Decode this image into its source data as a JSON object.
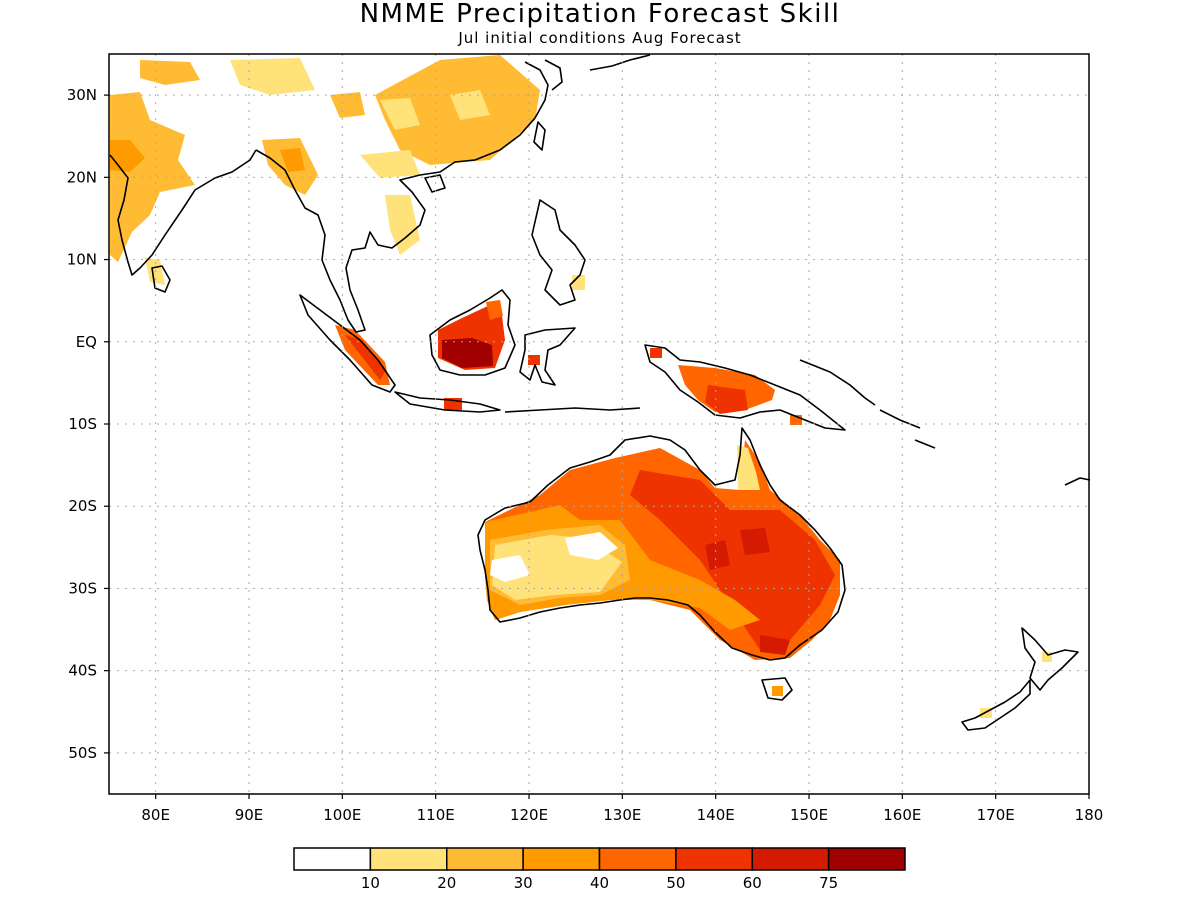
{
  "title": "NMME Precipitation Forecast Skill",
  "subtitle": "Jul initial conditions  Aug Forecast",
  "map": {
    "lon_range": [
      75,
      180
    ],
    "lat_range": [
      -55,
      35
    ],
    "lat_ticks": [
      {
        "value": 30,
        "label": "30N"
      },
      {
        "value": 20,
        "label": "20N"
      },
      {
        "value": 10,
        "label": "10N"
      },
      {
        "value": 0,
        "label": "EQ"
      },
      {
        "value": -10,
        "label": "10S"
      },
      {
        "value": -20,
        "label": "20S"
      },
      {
        "value": -30,
        "label": "30S"
      },
      {
        "value": -40,
        "label": "40S"
      },
      {
        "value": -50,
        "label": "50S"
      }
    ],
    "lon_ticks": [
      {
        "value": 80,
        "label": "80E"
      },
      {
        "value": 90,
        "label": "90E"
      },
      {
        "value": 100,
        "label": "100E"
      },
      {
        "value": 110,
        "label": "110E"
      },
      {
        "value": 120,
        "label": "120E"
      },
      {
        "value": 130,
        "label": "130E"
      },
      {
        "value": 140,
        "label": "140E"
      },
      {
        "value": 150,
        "label": "150E"
      },
      {
        "value": 160,
        "label": "160E"
      },
      {
        "value": 170,
        "label": "170E"
      },
      {
        "value": 180,
        "label": "180"
      }
    ],
    "grid": true
  },
  "colorbar": {
    "colors": [
      "#ffffff",
      "#ffe27a",
      "#ffbb33",
      "#ff9a00",
      "#ff6600",
      "#ee3300",
      "#d41a00",
      "#a00000"
    ],
    "labels": [
      "10",
      "20",
      "30",
      "40",
      "50",
      "60",
      "75"
    ]
  }
}
